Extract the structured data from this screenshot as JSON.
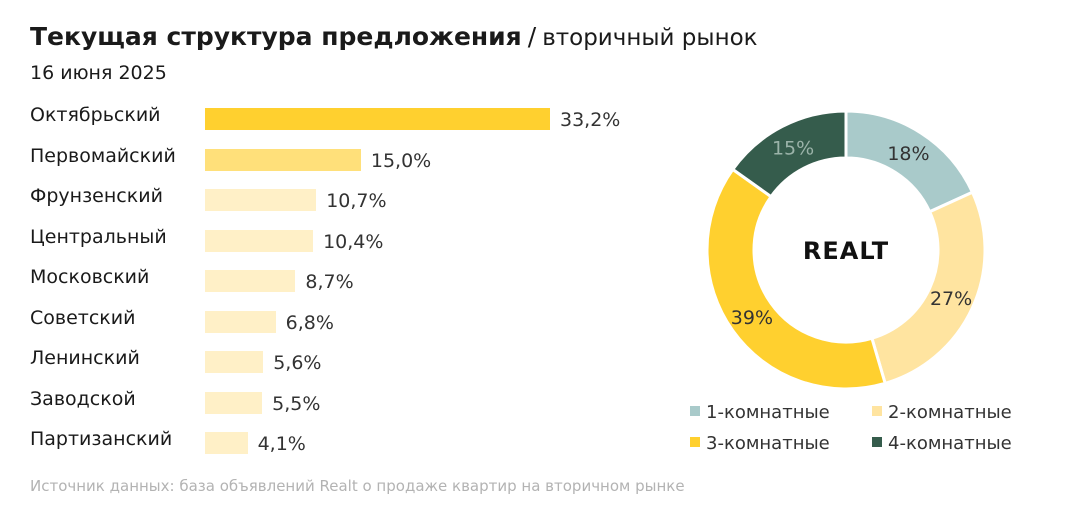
{
  "header": {
    "title_bold": "Текущая структура предложения",
    "title_sep": "/",
    "title_rest": "вторичный рынок",
    "date": "16 июня 2025"
  },
  "source": "Источник данных: база объявлений Realt о продаже квартир на вторичном рынке",
  "logo_text": "REALT",
  "colors": {
    "bar_top": "#FFD02F",
    "bar_second": "#FFE07A",
    "bar_rest": "#FFF0C7",
    "donut_1": "#A9CACA",
    "donut_2": "#FFE4A0",
    "donut_3": "#FFD02F",
    "donut_4": "#355C4C"
  },
  "chart_data": [
    {
      "type": "bar",
      "orientation": "horizontal",
      "categories": [
        "Октябрьский",
        "Первомайский",
        "Фрунзенский",
        "Центральный",
        "Московский",
        "Советский",
        "Ленинский",
        "Заводской",
        "Партизанский"
      ],
      "values": [
        33.2,
        15.0,
        10.7,
        10.4,
        8.7,
        6.8,
        5.6,
        5.5,
        4.1
      ],
      "value_labels": [
        "33,2%",
        "15,0%",
        "10,7%",
        "10,4%",
        "8,7%",
        "6,8%",
        "5,6%",
        "5,5%",
        "4,1%"
      ],
      "grid": false
    },
    {
      "type": "pie",
      "style": "donut",
      "categories": [
        "1-комнатные",
        "2-комнатные",
        "3-комнатные",
        "4-комнатные"
      ],
      "values": [
        18,
        27,
        39,
        15
      ],
      "value_labels": [
        "18%",
        "27%",
        "39%",
        "15%"
      ],
      "legend": "bottom"
    }
  ]
}
